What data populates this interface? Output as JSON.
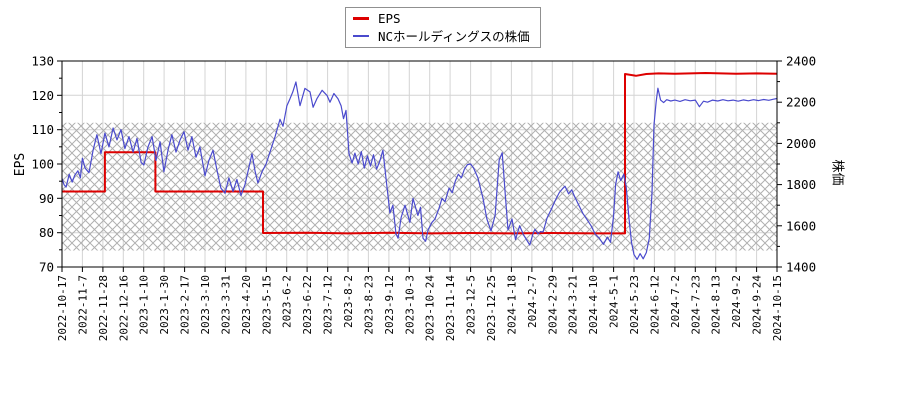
{
  "legend": {
    "items": [
      {
        "label": "EPS",
        "color": "#dd0000"
      },
      {
        "label": "NCホールディングスの株価",
        "color": "#4a4acd"
      }
    ]
  },
  "colors": {
    "eps_line": "#dd0000",
    "price_line": "#4a4acd",
    "grid": "#d4d4d4",
    "hatch": "#b0b0b0",
    "axis": "#000000",
    "legend_border": "#909090",
    "background": "#ffffff"
  },
  "chart_data": {
    "type": "line",
    "title": "",
    "grid": true,
    "legend_position": "top-center",
    "left_axis": {
      "title": "EPS",
      "min": 70,
      "max": 130,
      "ticks": [
        70,
        80,
        90,
        100,
        110,
        120,
        130
      ],
      "minor_step": 5
    },
    "right_axis": {
      "title": "株価",
      "min": 1400,
      "max": 2400,
      "ticks": [
        1400,
        1600,
        1800,
        2000,
        2200,
        2400
      ],
      "minor_step": 100
    },
    "x_axis": {
      "tick_labels": [
        "2022-10-17",
        "2022-11-7",
        "2022-11-28",
        "2022-12-16",
        "2023-1-10",
        "2023-1-30",
        "2023-2-17",
        "2023-3-10",
        "2023-3-31",
        "2023-4-20",
        "2023-5-15",
        "2023-6-2",
        "2023-6-22",
        "2023-7-12",
        "2023-8-2",
        "2023-8-23",
        "2023-9-12",
        "2023-10-3",
        "2023-10-24",
        "2023-11-14",
        "2023-12-5",
        "2023-12-25",
        "2024-1-18",
        "2024-2-7",
        "2024-2-29",
        "2024-3-21",
        "2024-4-10",
        "2024-5-1",
        "2024-5-23",
        "2024-6-12",
        "2024-7-2",
        "2024-7-23",
        "2024-8-13",
        "2024-9-2",
        "2024-9-24",
        "2024-10-15"
      ]
    },
    "hatch_band": {
      "axis": "right",
      "from": 1480,
      "to": 2100
    },
    "series": [
      {
        "name": "EPS",
        "axis": "left",
        "color": "#dd0000",
        "width": 2,
        "points": [
          [
            0,
            92
          ],
          [
            2.1,
            92
          ],
          [
            2.1,
            103.4
          ],
          [
            4.57,
            103.4
          ],
          [
            4.57,
            92
          ],
          [
            7.0,
            92
          ],
          [
            9.84,
            92
          ],
          [
            9.84,
            79.9
          ],
          [
            12.0,
            80.0
          ],
          [
            14.0,
            79.8
          ],
          [
            16.0,
            80.0
          ],
          [
            18.0,
            79.8
          ],
          [
            20.0,
            79.9
          ],
          [
            22.0,
            79.8
          ],
          [
            24.0,
            79.9
          ],
          [
            26.0,
            79.8
          ],
          [
            27.56,
            79.8
          ],
          [
            27.56,
            126.2
          ],
          [
            28.1,
            125.7
          ],
          [
            28.6,
            126.2
          ],
          [
            29.2,
            126.4
          ],
          [
            30.0,
            126.3
          ],
          [
            31.5,
            126.5
          ],
          [
            33.0,
            126.3
          ],
          [
            34.0,
            126.4
          ],
          [
            35.0,
            126.3
          ]
        ]
      },
      {
        "name": "NCホールディングスの株価",
        "axis": "right",
        "color": "#4a4acd",
        "width": 1.2,
        "points": [
          [
            0.0,
            1830
          ],
          [
            0.1,
            1800
          ],
          [
            0.2,
            1788
          ],
          [
            0.35,
            1850
          ],
          [
            0.5,
            1812
          ],
          [
            0.62,
            1845
          ],
          [
            0.78,
            1867
          ],
          [
            0.9,
            1833
          ],
          [
            1.0,
            1928
          ],
          [
            1.13,
            1880
          ],
          [
            1.32,
            1858
          ],
          [
            1.52,
            1967
          ],
          [
            1.71,
            2042
          ],
          [
            1.91,
            1950
          ],
          [
            2.1,
            2050
          ],
          [
            2.3,
            1983
          ],
          [
            2.5,
            2075
          ],
          [
            2.69,
            2017
          ],
          [
            2.89,
            2067
          ],
          [
            3.08,
            1975
          ],
          [
            3.28,
            2033
          ],
          [
            3.48,
            1958
          ],
          [
            3.67,
            2025
          ],
          [
            3.87,
            1908
          ],
          [
            4.01,
            1895
          ],
          [
            4.21,
            1983
          ],
          [
            4.41,
            2033
          ],
          [
            4.6,
            1917
          ],
          [
            4.8,
            2008
          ],
          [
            4.99,
            1862
          ],
          [
            5.19,
            1967
          ],
          [
            5.38,
            2042
          ],
          [
            5.58,
            1958
          ],
          [
            5.78,
            2017
          ],
          [
            5.97,
            2057
          ],
          [
            6.17,
            1967
          ],
          [
            6.36,
            2033
          ],
          [
            6.56,
            1933
          ],
          [
            6.75,
            1983
          ],
          [
            7.0,
            1842
          ],
          [
            7.19,
            1917
          ],
          [
            7.39,
            1967
          ],
          [
            7.59,
            1867
          ],
          [
            7.78,
            1783
          ],
          [
            7.98,
            1758
          ],
          [
            8.17,
            1833
          ],
          [
            8.37,
            1767
          ],
          [
            8.56,
            1825
          ],
          [
            8.76,
            1747
          ],
          [
            8.96,
            1800
          ],
          [
            9.15,
            1883
          ],
          [
            9.3,
            1950
          ],
          [
            9.45,
            1867
          ],
          [
            9.59,
            1808
          ],
          [
            9.79,
            1862
          ],
          [
            9.99,
            1900
          ],
          [
            10.18,
            1958
          ],
          [
            10.43,
            2033
          ],
          [
            10.67,
            2117
          ],
          [
            10.82,
            2083
          ],
          [
            11.01,
            2183
          ],
          [
            11.16,
            2217
          ],
          [
            11.3,
            2250
          ],
          [
            11.45,
            2298
          ],
          [
            11.65,
            2183
          ],
          [
            11.89,
            2267
          ],
          [
            12.14,
            2250
          ],
          [
            12.29,
            2175
          ],
          [
            12.48,
            2217
          ],
          [
            12.73,
            2258
          ],
          [
            12.97,
            2233
          ],
          [
            13.12,
            2200
          ],
          [
            13.31,
            2242
          ],
          [
            13.51,
            2217
          ],
          [
            13.66,
            2183
          ],
          [
            13.78,
            2120
          ],
          [
            13.9,
            2160
          ],
          [
            14.05,
            1950
          ],
          [
            14.2,
            1905
          ],
          [
            14.34,
            1953
          ],
          [
            14.5,
            1900
          ],
          [
            14.65,
            1960
          ],
          [
            14.8,
            1880
          ],
          [
            14.95,
            1940
          ],
          [
            15.1,
            1890
          ],
          [
            15.25,
            1945
          ],
          [
            15.4,
            1875
          ],
          [
            15.56,
            1915
          ],
          [
            15.71,
            1967
          ],
          [
            15.85,
            1840
          ],
          [
            16.05,
            1662
          ],
          [
            16.2,
            1700
          ],
          [
            16.35,
            1560
          ],
          [
            16.45,
            1540
          ],
          [
            16.6,
            1640
          ],
          [
            16.79,
            1700
          ],
          [
            17.03,
            1617
          ],
          [
            17.18,
            1733
          ],
          [
            17.42,
            1650
          ],
          [
            17.55,
            1690
          ],
          [
            17.67,
            1540
          ],
          [
            17.8,
            1525
          ],
          [
            17.92,
            1580
          ],
          [
            18.11,
            1617
          ],
          [
            18.26,
            1633
          ],
          [
            18.45,
            1683
          ],
          [
            18.6,
            1733
          ],
          [
            18.75,
            1717
          ],
          [
            18.95,
            1783
          ],
          [
            19.1,
            1760
          ],
          [
            19.25,
            1817
          ],
          [
            19.4,
            1850
          ],
          [
            19.55,
            1833
          ],
          [
            19.7,
            1875
          ],
          [
            19.85,
            1897
          ],
          [
            20.0,
            1900
          ],
          [
            20.15,
            1880
          ],
          [
            20.36,
            1833
          ],
          [
            20.61,
            1733
          ],
          [
            20.8,
            1633
          ],
          [
            21.0,
            1575
          ],
          [
            21.2,
            1650
          ],
          [
            21.4,
            1920
          ],
          [
            21.55,
            1955
          ],
          [
            21.7,
            1750
          ],
          [
            21.83,
            1580
          ],
          [
            22.03,
            1633
          ],
          [
            22.2,
            1533
          ],
          [
            22.4,
            1600
          ],
          [
            22.6,
            1555
          ],
          [
            22.75,
            1530
          ],
          [
            22.9,
            1507
          ],
          [
            23.05,
            1560
          ],
          [
            23.15,
            1583
          ],
          [
            23.3,
            1560
          ],
          [
            23.42,
            1572
          ],
          [
            23.55,
            1570
          ],
          [
            23.75,
            1640
          ],
          [
            23.95,
            1680
          ],
          [
            24.15,
            1725
          ],
          [
            24.35,
            1762
          ],
          [
            24.5,
            1780
          ],
          [
            24.62,
            1792
          ],
          [
            24.8,
            1755
          ],
          [
            24.95,
            1775
          ],
          [
            25.1,
            1740
          ],
          [
            25.3,
            1700
          ],
          [
            25.5,
            1660
          ],
          [
            25.7,
            1630
          ],
          [
            25.9,
            1600
          ],
          [
            26.1,
            1560
          ],
          [
            26.3,
            1540
          ],
          [
            26.5,
            1510
          ],
          [
            26.7,
            1545
          ],
          [
            26.85,
            1520
          ],
          [
            27.0,
            1650
          ],
          [
            27.1,
            1800
          ],
          [
            27.22,
            1862
          ],
          [
            27.35,
            1820
          ],
          [
            27.5,
            1850
          ],
          [
            27.62,
            1790
          ],
          [
            27.75,
            1640
          ],
          [
            27.88,
            1520
          ],
          [
            28.0,
            1460
          ],
          [
            28.15,
            1437
          ],
          [
            28.3,
            1465
          ],
          [
            28.45,
            1440
          ],
          [
            28.6,
            1470
          ],
          [
            28.75,
            1540
          ],
          [
            28.88,
            1760
          ],
          [
            28.98,
            2090
          ],
          [
            29.08,
            2200
          ],
          [
            29.17,
            2268
          ],
          [
            29.3,
            2210
          ],
          [
            29.45,
            2198
          ],
          [
            29.6,
            2212
          ],
          [
            29.8,
            2206
          ],
          [
            30.0,
            2210
          ],
          [
            30.25,
            2204
          ],
          [
            30.5,
            2212
          ],
          [
            30.75,
            2207
          ],
          [
            31.0,
            2210
          ],
          [
            31.2,
            2178
          ],
          [
            31.4,
            2205
          ],
          [
            31.6,
            2200
          ],
          [
            31.85,
            2210
          ],
          [
            32.1,
            2206
          ],
          [
            32.35,
            2212
          ],
          [
            32.6,
            2207
          ],
          [
            32.85,
            2210
          ],
          [
            33.1,
            2205
          ],
          [
            33.35,
            2211
          ],
          [
            33.6,
            2207
          ],
          [
            33.85,
            2212
          ],
          [
            34.1,
            2208
          ],
          [
            34.35,
            2213
          ],
          [
            34.6,
            2209
          ],
          [
            34.8,
            2214
          ],
          [
            35.0,
            2218
          ]
        ]
      }
    ]
  }
}
